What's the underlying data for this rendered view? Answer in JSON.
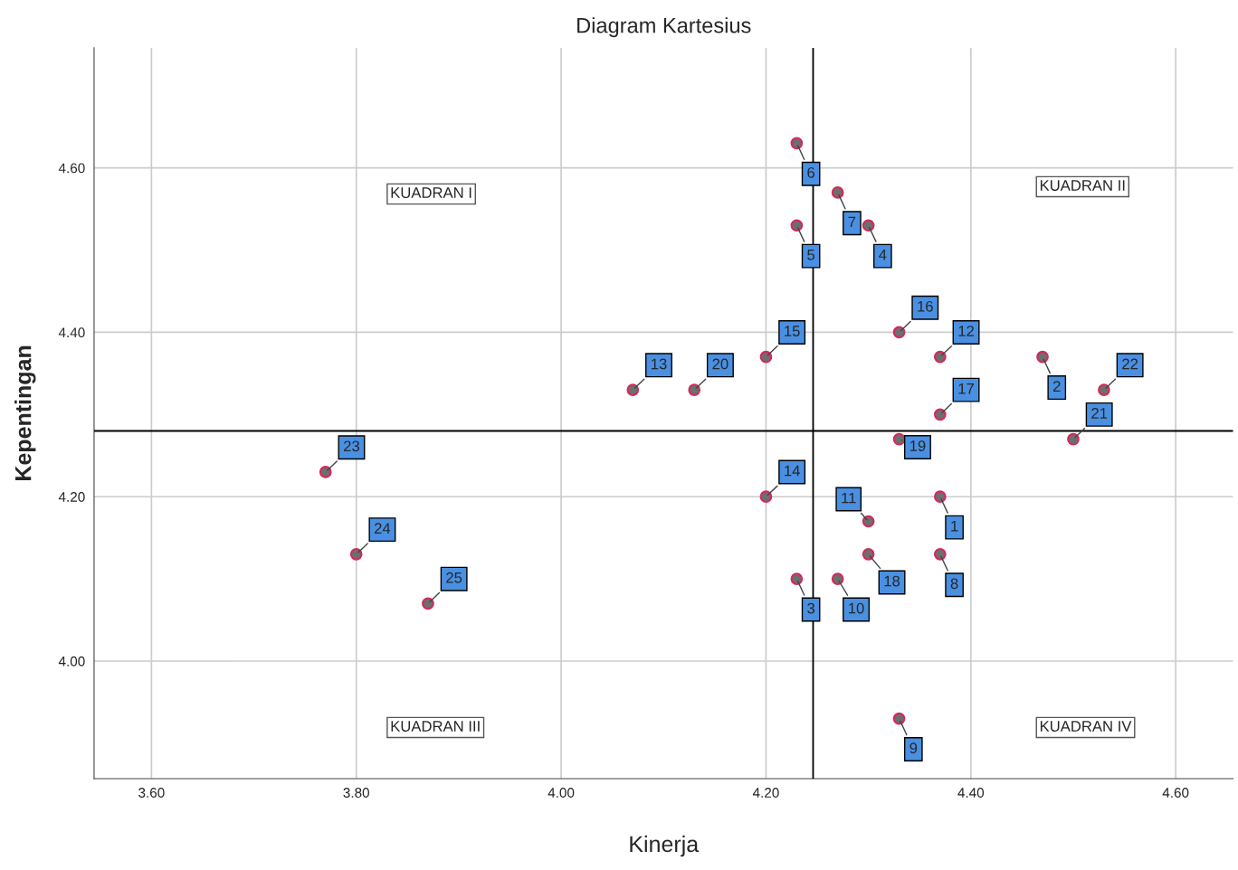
{
  "chart_data": {
    "type": "scatter",
    "title": "Diagram Kartesius",
    "xlabel": "Kinerja",
    "ylabel": "Kepentingan",
    "x": [
      4.37,
      4.47,
      4.23,
      4.3,
      4.23,
      4.23,
      4.27,
      4.37,
      4.33,
      4.27,
      4.3,
      4.37,
      4.07,
      4.2,
      4.2,
      4.33,
      4.37,
      4.3,
      4.33,
      4.13,
      4.5,
      4.53,
      3.77,
      3.8,
      3.87
    ],
    "series": [
      {
        "color": "#6e6e6e",
        "values": [
          4.2,
          4.37,
          4.1,
          4.53,
          4.53,
          4.63,
          4.57,
          4.13,
          3.93,
          4.1,
          4.17,
          4.37,
          4.33,
          4.2,
          4.37,
          4.4,
          4.3,
          4.13,
          4.27,
          4.33,
          4.27,
          4.33,
          4.23,
          4.13,
          4.07
        ]
      }
    ],
    "marker": "circle",
    "grid": true,
    "xlim": [
      3.544,
      4.656
    ],
    "ylim": [
      3.857,
      4.746
    ],
    "xticks": [
      {
        "value": 3.6,
        "label": "3.60"
      },
      {
        "value": 3.8,
        "label": "3.80"
      },
      {
        "value": 4.0,
        "label": "4.00"
      },
      {
        "value": 4.2,
        "label": "4.20"
      },
      {
        "value": 4.4,
        "label": "4.40"
      },
      {
        "value": 4.6,
        "label": "4.60"
      }
    ],
    "yticks": [
      {
        "value": 4.0,
        "label": "4.00"
      },
      {
        "value": 4.2,
        "label": "4.20"
      },
      {
        "value": 4.4,
        "label": "4.40"
      },
      {
        "value": 4.6,
        "label": "4.60"
      }
    ],
    "ref_lines": [
      {
        "axis": "x",
        "value": 4.246,
        "color": "#000000"
      },
      {
        "axis": "y",
        "value": 4.28,
        "color": "#000000"
      }
    ],
    "annotations": [
      {
        "text": "1",
        "x": 4.37,
        "y": 4.2
      },
      {
        "text": "2",
        "x": 4.47,
        "y": 4.37
      },
      {
        "text": "3",
        "x": 4.23,
        "y": 4.1
      },
      {
        "text": "4",
        "x": 4.3,
        "y": 4.53
      },
      {
        "text": "5",
        "x": 4.23,
        "y": 4.53
      },
      {
        "text": "6",
        "x": 4.23,
        "y": 4.63
      },
      {
        "text": "7",
        "x": 4.27,
        "y": 4.57
      },
      {
        "text": "8",
        "x": 4.37,
        "y": 4.13
      },
      {
        "text": "9",
        "x": 4.33,
        "y": 3.93
      },
      {
        "text": "10",
        "x": 4.27,
        "y": 4.1
      },
      {
        "text": "11",
        "x": 4.3,
        "y": 4.17
      },
      {
        "text": "12",
        "x": 4.37,
        "y": 4.37
      },
      {
        "text": "13",
        "x": 4.07,
        "y": 4.33
      },
      {
        "text": "14",
        "x": 4.2,
        "y": 4.2
      },
      {
        "text": "15",
        "x": 4.2,
        "y": 4.37
      },
      {
        "text": "16",
        "x": 4.33,
        "y": 4.4
      },
      {
        "text": "17",
        "x": 4.37,
        "y": 4.3
      },
      {
        "text": "18",
        "x": 4.3,
        "y": 4.13
      },
      {
        "text": "19",
        "x": 4.33,
        "y": 4.27
      },
      {
        "text": "20",
        "x": 4.13,
        "y": 4.33
      },
      {
        "text": "21",
        "x": 4.5,
        "y": 4.27
      },
      {
        "text": "22",
        "x": 4.53,
        "y": 4.33
      },
      {
        "text": "23",
        "x": 3.77,
        "y": 4.23
      },
      {
        "text": "24",
        "x": 3.8,
        "y": 4.13
      },
      {
        "text": "25",
        "x": 3.87,
        "y": 4.07
      },
      "KUADRAN I",
      "KUADRAN II",
      "KUADRAN III",
      "KUADRAN IV"
    ]
  }
}
